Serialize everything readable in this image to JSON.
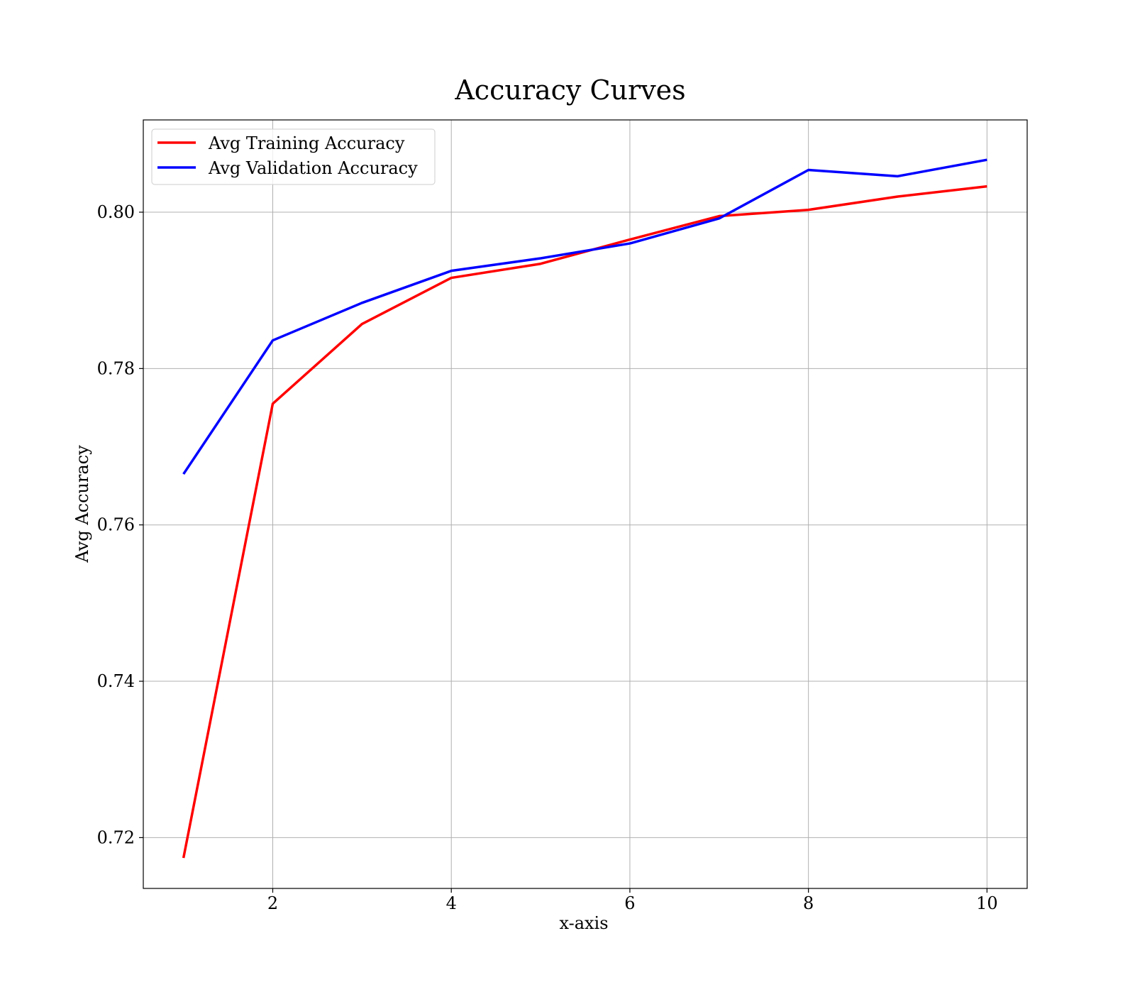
{
  "chart_data": {
    "type": "line",
    "title": "Accuracy Curves",
    "xlabel": "x-axis",
    "ylabel": "Avg Accuracy",
    "xlim": [
      0.55,
      10.45
    ],
    "ylim": [
      0.7135,
      0.8118
    ],
    "xticks": [
      2,
      4,
      6,
      8,
      10
    ],
    "xtick_labels": [
      "2",
      "4",
      "6",
      "8",
      "10"
    ],
    "yticks": [
      0.72,
      0.74,
      0.76,
      0.78,
      0.8
    ],
    "ytick_labels": [
      "0.72",
      "0.74",
      "0.76",
      "0.78",
      "0.80"
    ],
    "grid": true,
    "legend_position": "upper-left",
    "x": [
      1,
      2,
      3,
      4,
      5,
      6,
      7,
      8,
      9,
      10
    ],
    "series": [
      {
        "name": "Avg Training Accuracy",
        "color": "#ff0000",
        "values": [
          0.7174,
          0.7755,
          0.7857,
          0.7916,
          0.7934,
          0.7965,
          0.7995,
          0.8003,
          0.802,
          0.8033
        ]
      },
      {
        "name": "Avg Validation Accuracy",
        "color": "#0000ff",
        "values": [
          0.7665,
          0.7836,
          0.7884,
          0.7925,
          0.7941,
          0.796,
          0.7992,
          0.8054,
          0.8046,
          0.8067
        ]
      }
    ]
  }
}
